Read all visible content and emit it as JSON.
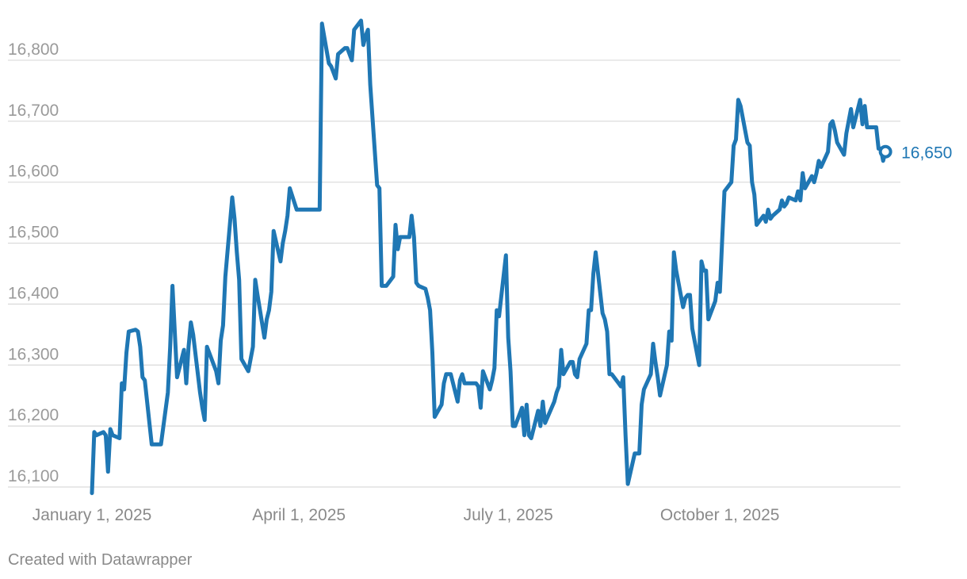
{
  "chart_data": {
    "type": "line",
    "y_ticks": [
      "16,100",
      "16,200",
      "16,300",
      "16,400",
      "16,500",
      "16,600",
      "16,700",
      "16,800"
    ],
    "y_tick_values": [
      16100,
      16200,
      16300,
      16400,
      16500,
      16600,
      16700,
      16800
    ],
    "ylim": [
      16100,
      16865
    ],
    "x_ticks": [
      {
        "label": "January 1, 2025",
        "date": "2025-01-01"
      },
      {
        "label": "April 1, 2025",
        "date": "2025-04-01"
      },
      {
        "label": "July 1, 2025",
        "date": "2025-07-01"
      },
      {
        "label": "October 1, 2025",
        "date": "2025-10-01"
      }
    ],
    "xlim": [
      "2025-01-01",
      "2025-12-03"
    ],
    "grid": true,
    "series": [
      {
        "color": "#1f77b4",
        "end_label": "16,650",
        "points": [
          [
            "2025-01-01",
            16090
          ],
          [
            "2025-01-02",
            16190
          ],
          [
            "2025-01-03",
            16185
          ],
          [
            "2025-01-06",
            16190
          ],
          [
            "2025-01-07",
            16185
          ],
          [
            "2025-01-08",
            16125
          ],
          [
            "2025-01-09",
            16195
          ],
          [
            "2025-01-10",
            16185
          ],
          [
            "2025-01-13",
            16180
          ],
          [
            "2025-01-14",
            16270
          ],
          [
            "2025-01-15",
            16260
          ],
          [
            "2025-01-16",
            16320
          ],
          [
            "2025-01-17",
            16355
          ],
          [
            "2025-01-20",
            16358
          ],
          [
            "2025-01-21",
            16355
          ],
          [
            "2025-01-22",
            16330
          ],
          [
            "2025-01-23",
            16280
          ],
          [
            "2025-01-24",
            16275
          ],
          [
            "2025-01-27",
            16170
          ],
          [
            "2025-01-28",
            16170
          ],
          [
            "2025-01-29",
            16170
          ],
          [
            "2025-01-30",
            16170
          ],
          [
            "2025-01-31",
            16170
          ],
          [
            "2025-02-03",
            16255
          ],
          [
            "2025-02-04",
            16330
          ],
          [
            "2025-02-05",
            16430
          ],
          [
            "2025-02-06",
            16355
          ],
          [
            "2025-02-07",
            16280
          ],
          [
            "2025-02-10",
            16325
          ],
          [
            "2025-02-11",
            16270
          ],
          [
            "2025-02-12",
            16330
          ],
          [
            "2025-02-13",
            16370
          ],
          [
            "2025-02-14",
            16350
          ],
          [
            "2025-02-17",
            16255
          ],
          [
            "2025-02-18",
            16230
          ],
          [
            "2025-02-19",
            16210
          ],
          [
            "2025-02-20",
            16330
          ],
          [
            "2025-02-21",
            16320
          ],
          [
            "2025-02-24",
            16290
          ],
          [
            "2025-02-25",
            16270
          ],
          [
            "2025-02-26",
            16340
          ],
          [
            "2025-02-27",
            16365
          ],
          [
            "2025-02-28",
            16445
          ],
          [
            "2025-03-03",
            16575
          ],
          [
            "2025-03-04",
            16540
          ],
          [
            "2025-03-05",
            16485
          ],
          [
            "2025-03-06",
            16440
          ],
          [
            "2025-03-07",
            16310
          ],
          [
            "2025-03-10",
            16290
          ],
          [
            "2025-03-11",
            16310
          ],
          [
            "2025-03-12",
            16330
          ],
          [
            "2025-03-13",
            16440
          ],
          [
            "2025-03-14",
            16415
          ],
          [
            "2025-03-17",
            16345
          ],
          [
            "2025-03-18",
            16375
          ],
          [
            "2025-03-19",
            16390
          ],
          [
            "2025-03-20",
            16420
          ],
          [
            "2025-03-21",
            16520
          ],
          [
            "2025-03-24",
            16470
          ],
          [
            "2025-03-25",
            16500
          ],
          [
            "2025-03-26",
            16520
          ],
          [
            "2025-03-27",
            16545
          ],
          [
            "2025-03-28",
            16590
          ],
          [
            "2025-03-31",
            16555
          ],
          [
            "2025-04-01",
            16555
          ],
          [
            "2025-04-02",
            16555
          ],
          [
            "2025-04-03",
            16555
          ],
          [
            "2025-04-04",
            16555
          ],
          [
            "2025-04-07",
            16555
          ],
          [
            "2025-04-08",
            16555
          ],
          [
            "2025-04-09",
            16555
          ],
          [
            "2025-04-10",
            16555
          ],
          [
            "2025-04-11",
            16860
          ],
          [
            "2025-04-14",
            16795
          ],
          [
            "2025-04-15",
            16790
          ],
          [
            "2025-04-16",
            16780
          ],
          [
            "2025-04-17",
            16770
          ],
          [
            "2025-04-18",
            16810
          ],
          [
            "2025-04-21",
            16820
          ],
          [
            "2025-04-22",
            16820
          ],
          [
            "2025-04-23",
            16810
          ],
          [
            "2025-04-24",
            16800
          ],
          [
            "2025-04-25",
            16850
          ],
          [
            "2025-04-28",
            16865
          ],
          [
            "2025-04-29",
            16825
          ],
          [
            "2025-04-30",
            16840
          ],
          [
            "2025-05-01",
            16850
          ],
          [
            "2025-05-02",
            16760
          ],
          [
            "2025-05-05",
            16595
          ],
          [
            "2025-05-06",
            16590
          ],
          [
            "2025-05-07",
            16430
          ],
          [
            "2025-05-08",
            16430
          ],
          [
            "2025-05-09",
            16430
          ],
          [
            "2025-05-12",
            16445
          ],
          [
            "2025-05-13",
            16530
          ],
          [
            "2025-05-14",
            16490
          ],
          [
            "2025-05-15",
            16510
          ],
          [
            "2025-05-16",
            16510
          ],
          [
            "2025-05-19",
            16510
          ],
          [
            "2025-05-20",
            16545
          ],
          [
            "2025-05-21",
            16510
          ],
          [
            "2025-05-22",
            16435
          ],
          [
            "2025-05-23",
            16430
          ],
          [
            "2025-05-26",
            16425
          ],
          [
            "2025-05-27",
            16410
          ],
          [
            "2025-05-28",
            16390
          ],
          [
            "2025-05-29",
            16320
          ],
          [
            "2025-05-30",
            16215
          ],
          [
            "2025-06-02",
            16235
          ],
          [
            "2025-06-03",
            16270
          ],
          [
            "2025-06-04",
            16285
          ],
          [
            "2025-06-05",
            16285
          ],
          [
            "2025-06-06",
            16285
          ],
          [
            "2025-06-09",
            16240
          ],
          [
            "2025-06-10",
            16275
          ],
          [
            "2025-06-11",
            16285
          ],
          [
            "2025-06-12",
            16270
          ],
          [
            "2025-06-13",
            16270
          ],
          [
            "2025-06-16",
            16270
          ],
          [
            "2025-06-17",
            16270
          ],
          [
            "2025-06-18",
            16265
          ],
          [
            "2025-06-19",
            16230
          ],
          [
            "2025-06-20",
            16290
          ],
          [
            "2025-06-23",
            16260
          ],
          [
            "2025-06-24",
            16275
          ],
          [
            "2025-06-25",
            16295
          ],
          [
            "2025-06-26",
            16390
          ],
          [
            "2025-06-27",
            16380
          ],
          [
            "2025-06-30",
            16480
          ],
          [
            "2025-07-01",
            16345
          ],
          [
            "2025-07-02",
            16290
          ],
          [
            "2025-07-03",
            16200
          ],
          [
            "2025-07-04",
            16200
          ],
          [
            "2025-07-07",
            16230
          ],
          [
            "2025-07-08",
            16185
          ],
          [
            "2025-07-09",
            16235
          ],
          [
            "2025-07-10",
            16185
          ],
          [
            "2025-07-11",
            16180
          ],
          [
            "2025-07-14",
            16225
          ],
          [
            "2025-07-15",
            16200
          ],
          [
            "2025-07-16",
            16240
          ],
          [
            "2025-07-17",
            16205
          ],
          [
            "2025-07-21",
            16240
          ],
          [
            "2025-07-22",
            16255
          ],
          [
            "2025-07-23",
            16265
          ],
          [
            "2025-07-24",
            16325
          ],
          [
            "2025-07-25",
            16285
          ],
          [
            "2025-07-28",
            16305
          ],
          [
            "2025-07-29",
            16305
          ],
          [
            "2025-07-30",
            16285
          ],
          [
            "2025-07-31",
            16280
          ],
          [
            "2025-08-01",
            16310
          ],
          [
            "2025-08-04",
            16335
          ],
          [
            "2025-08-05",
            16390
          ],
          [
            "2025-08-06",
            16390
          ],
          [
            "2025-08-07",
            16450
          ],
          [
            "2025-08-08",
            16485
          ],
          [
            "2025-08-11",
            16385
          ],
          [
            "2025-08-12",
            16375
          ],
          [
            "2025-08-13",
            16355
          ],
          [
            "2025-08-14",
            16285
          ],
          [
            "2025-08-15",
            16285
          ],
          [
            "2025-08-18",
            16270
          ],
          [
            "2025-08-19",
            16265
          ],
          [
            "2025-08-20",
            16280
          ],
          [
            "2025-08-21",
            16185
          ],
          [
            "2025-08-22",
            16105
          ],
          [
            "2025-08-25",
            16155
          ],
          [
            "2025-08-26",
            16155
          ],
          [
            "2025-08-27",
            16155
          ],
          [
            "2025-08-28",
            16235
          ],
          [
            "2025-08-29",
            16260
          ],
          [
            "2025-09-01",
            16285
          ],
          [
            "2025-09-02",
            16335
          ],
          [
            "2025-09-03",
            16305
          ],
          [
            "2025-09-04",
            16280
          ],
          [
            "2025-09-05",
            16250
          ],
          [
            "2025-09-08",
            16300
          ],
          [
            "2025-09-09",
            16355
          ],
          [
            "2025-09-10",
            16340
          ],
          [
            "2025-09-11",
            16485
          ],
          [
            "2025-09-12",
            16455
          ],
          [
            "2025-09-15",
            16395
          ],
          [
            "2025-09-16",
            16410
          ],
          [
            "2025-09-17",
            16415
          ],
          [
            "2025-09-18",
            16415
          ],
          [
            "2025-09-19",
            16360
          ],
          [
            "2025-09-22",
            16300
          ],
          [
            "2025-09-23",
            16470
          ],
          [
            "2025-09-24",
            16455
          ],
          [
            "2025-09-25",
            16455
          ],
          [
            "2025-09-26",
            16375
          ],
          [
            "2025-09-29",
            16405
          ],
          [
            "2025-09-30",
            16435
          ],
          [
            "2025-10-01",
            16420
          ],
          [
            "2025-10-02",
            16505
          ],
          [
            "2025-10-03",
            16585
          ],
          [
            "2025-10-06",
            16600
          ],
          [
            "2025-10-07",
            16660
          ],
          [
            "2025-10-08",
            16670
          ],
          [
            "2025-10-09",
            16735
          ],
          [
            "2025-10-10",
            16725
          ],
          [
            "2025-10-13",
            16665
          ],
          [
            "2025-10-14",
            16660
          ],
          [
            "2025-10-15",
            16600
          ],
          [
            "2025-10-16",
            16580
          ],
          [
            "2025-10-17",
            16530
          ],
          [
            "2025-10-20",
            16545
          ],
          [
            "2025-10-21",
            16535
          ],
          [
            "2025-10-22",
            16555
          ],
          [
            "2025-10-23",
            16540
          ],
          [
            "2025-10-24",
            16545
          ],
          [
            "2025-10-27",
            16555
          ],
          [
            "2025-10-28",
            16570
          ],
          [
            "2025-10-29",
            16560
          ],
          [
            "2025-10-30",
            16565
          ],
          [
            "2025-10-31",
            16575
          ],
          [
            "2025-11-03",
            16570
          ],
          [
            "2025-11-04",
            16585
          ],
          [
            "2025-11-05",
            16570
          ],
          [
            "2025-11-06",
            16615
          ],
          [
            "2025-11-07",
            16590
          ],
          [
            "2025-11-10",
            16610
          ],
          [
            "2025-11-11",
            16600
          ],
          [
            "2025-11-12",
            16615
          ],
          [
            "2025-11-13",
            16635
          ],
          [
            "2025-11-14",
            16625
          ],
          [
            "2025-11-17",
            16650
          ],
          [
            "2025-11-18",
            16695
          ],
          [
            "2025-11-19",
            16700
          ],
          [
            "2025-11-20",
            16685
          ],
          [
            "2025-11-21",
            16665
          ],
          [
            "2025-11-24",
            16645
          ],
          [
            "2025-11-25",
            16680
          ],
          [
            "2025-11-26",
            16700
          ],
          [
            "2025-11-27",
            16720
          ],
          [
            "2025-11-28",
            16690
          ],
          [
            "2025-12-01",
            16735
          ],
          [
            "2025-12-02",
            16695
          ],
          [
            "2025-12-03",
            16725
          ],
          [
            "2025-12-04",
            16690
          ],
          [
            "2025-12-05",
            16690
          ],
          [
            "2025-12-08",
            16690
          ],
          [
            "2025-12-09",
            16655
          ],
          [
            "2025-12-10",
            16655
          ],
          [
            "2025-12-11",
            16635
          ],
          [
            "2025-12-12",
            16650
          ]
        ]
      }
    ]
  },
  "footer": {
    "credit": "Created with Datawrapper"
  }
}
